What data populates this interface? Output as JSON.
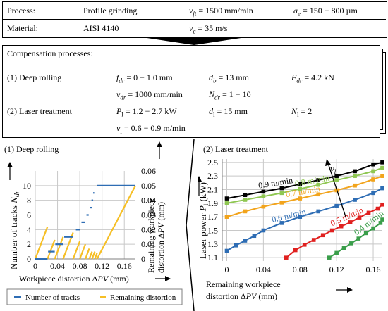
{
  "params": {
    "process_label": "Process:",
    "process_value": "Profile grinding",
    "vft": "= 1500 mm/min",
    "ae": "= 150 − 800 µm",
    "material_label": "Material:",
    "material_value": "AISI 4140",
    "vc": "= 35 m/s"
  },
  "comp": {
    "title": "Compensation processes:",
    "deep_rolling": "(1) Deep rolling",
    "fdr": "= 0 − 1.0 mm",
    "db": "= 13 mm",
    "Fdr": "= 4.2 kN",
    "vdr": "= 1000 mm/min",
    "Ndr": "= 1 − 10",
    "laser": "(2) Laser treatment",
    "Pl": "= 1.2 − 2.7 kW",
    "dl": "= 15 mm",
    "Nl": "= 2",
    "vl": "= 0.6 − 0.9 m/min"
  },
  "colors": {
    "blue": "#2e6db4",
    "orange": "#f6bf26",
    "black": "#000000",
    "lightgreen": "#8fc752",
    "darkorange": "#f2a41c",
    "gridgray": "#c8c8c8",
    "red": "#e0201f",
    "green": "#3a9e4a"
  },
  "chart_data": [
    {
      "type": "line",
      "title": "(1) Deep rolling",
      "xlabel": "Workpiece distortion ΔPV (mm)",
      "ylabel": "Number of tracks N_dr",
      "y2label": "Remaining workpiece distortion ΔPV (mm)",
      "xlim": [
        0,
        0.18
      ],
      "ylim": [
        0,
        12
      ],
      "y2lim": [
        0,
        0.06
      ],
      "xticks": [
        "0",
        "0.04",
        "0.08",
        "0.12",
        "0.16"
      ],
      "yticks": [
        "0",
        "2",
        "4",
        "6",
        "8",
        "10"
      ],
      "y2ticks": [
        "0",
        "0.01",
        "0.02",
        "0.03",
        "0.04",
        "0.05",
        "0.06"
      ],
      "legend": {
        "tracks": "Number  of tracks",
        "remaining": "Remaining distortion"
      },
      "tracks_steps": [
        {
          "x0": 0.0,
          "x1": 0.022,
          "y": 0
        },
        {
          "x0": 0.023,
          "x1": 0.035,
          "y": 1
        },
        {
          "x0": 0.036,
          "x1": 0.05,
          "y": 2
        },
        {
          "x0": 0.052,
          "x1": 0.068,
          "y": 3
        },
        {
          "x0": 0.073,
          "x1": 0.08,
          "y": 4
        },
        {
          "x0": 0.083,
          "x1": 0.09,
          "y": 5
        },
        {
          "x0": 0.092,
          "x1": 0.096,
          "y": 6
        },
        {
          "x0": 0.098,
          "x1": 0.102,
          "y": 7
        },
        {
          "x0": 0.101,
          "x1": 0.104,
          "y": 8
        },
        {
          "x0": 0.104,
          "x1": 0.106,
          "y": 9
        },
        {
          "x0": 0.111,
          "x1": 0.18,
          "y": 10
        }
      ],
      "remaining_segments": [
        {
          "x0": 0.0,
          "y0": 0.0,
          "x1": 0.022,
          "y1": 0.022
        },
        {
          "x0": 0.022,
          "y0": 0.0,
          "x1": 0.035,
          "y1": 0.013
        },
        {
          "x0": 0.035,
          "y0": 0.0,
          "x1": 0.05,
          "y1": 0.015
        },
        {
          "x0": 0.05,
          "y0": 0.0,
          "x1": 0.068,
          "y1": 0.018
        },
        {
          "x0": 0.068,
          "y0": 0.0,
          "x1": 0.08,
          "y1": 0.012
        },
        {
          "x0": 0.08,
          "y0": 0.0,
          "x1": 0.09,
          "y1": 0.01
        },
        {
          "x0": 0.09,
          "y0": 0.0,
          "x1": 0.097,
          "y1": 0.007
        },
        {
          "x0": 0.097,
          "y0": 0.0,
          "x1": 0.102,
          "y1": 0.005
        },
        {
          "x0": 0.102,
          "y0": 0.0,
          "x1": 0.107,
          "y1": 0.005
        },
        {
          "x0": 0.107,
          "y0": 0.0,
          "x1": 0.111,
          "y1": 0.004
        },
        {
          "x0": 0.111,
          "y0": 0.0,
          "x1": 0.18,
          "y1": 0.05
        }
      ]
    },
    {
      "type": "line",
      "title": "(2) Laser treatment",
      "xlabel": "Remaining workpiece distortion ΔPV (mm)",
      "ylabel": "Laser power P_l (kW)",
      "xlim": [
        -0.005,
        0.17
      ],
      "ylim": [
        1.05,
        2.55
      ],
      "xticks": [
        0,
        0.04,
        0.08,
        0.12,
        0.16
      ],
      "xticklabels": [
        "0",
        "0.04",
        "0.08",
        "0.12",
        "0.16"
      ],
      "yticks": [
        1.1,
        1.3,
        1.5,
        1.7,
        1.9,
        2.1,
        2.3,
        2.5
      ],
      "yticklabels": [
        "1.1",
        "1.3",
        "1.5",
        "1.7",
        "1.9",
        "2.1",
        "2.3",
        "2.5"
      ],
      "arrow_label": "v_l",
      "series": [
        {
          "name": "0.9 m/min",
          "color": "#000000",
          "x": [
            0,
            0.02,
            0.04,
            0.06,
            0.08,
            0.1,
            0.12,
            0.14,
            0.16,
            0.17
          ],
          "y": [
            1.97,
            2.02,
            2.07,
            2.12,
            2.18,
            2.24,
            2.3,
            2.37,
            2.47,
            2.5
          ]
        },
        {
          "name": "0.8 m/min",
          "color": "#8fc752",
          "x": [
            0,
            0.02,
            0.04,
            0.06,
            0.08,
            0.1,
            0.12,
            0.14,
            0.16,
            0.17
          ],
          "y": [
            1.9,
            1.95,
            2.0,
            2.05,
            2.11,
            2.17,
            2.24,
            2.3,
            2.37,
            2.42
          ]
        },
        {
          "name": "0.7 m/min",
          "color": "#f2a41c",
          "x": [
            0,
            0.02,
            0.04,
            0.06,
            0.08,
            0.1,
            0.12,
            0.14,
            0.16,
            0.17
          ],
          "y": [
            1.7,
            1.78,
            1.85,
            1.91,
            1.97,
            2.03,
            2.09,
            2.16,
            2.25,
            2.3
          ]
        },
        {
          "name": "0.6 m/min",
          "color": "#2e6db4",
          "x": [
            0,
            0.01,
            0.02,
            0.03,
            0.04,
            0.06,
            0.08,
            0.1,
            0.12,
            0.14,
            0.16,
            0.17
          ],
          "y": [
            1.2,
            1.28,
            1.35,
            1.42,
            1.5,
            1.61,
            1.7,
            1.78,
            1.86,
            1.95,
            2.05,
            2.12
          ]
        },
        {
          "name": "0.5 m/min",
          "color": "#e0201f",
          "x": [
            0.065,
            0.075,
            0.085,
            0.095,
            0.105,
            0.115,
            0.125,
            0.135,
            0.145,
            0.155,
            0.165,
            0.17
          ],
          "y": [
            1.1,
            1.21,
            1.29,
            1.36,
            1.43,
            1.5,
            1.56,
            1.62,
            1.69,
            1.76,
            1.82,
            1.88
          ]
        },
        {
          "name": "0.4 m/min",
          "color": "#3a9e4a",
          "x": [
            0.112,
            0.12,
            0.128,
            0.136,
            0.144,
            0.152,
            0.16,
            0.168,
            0.17
          ],
          "y": [
            1.1,
            1.17,
            1.24,
            1.31,
            1.38,
            1.46,
            1.53,
            1.61,
            1.66
          ]
        }
      ]
    }
  ]
}
